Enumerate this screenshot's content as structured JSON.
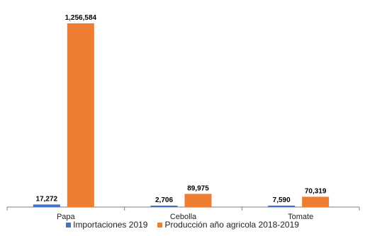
{
  "chart_data": {
    "type": "bar",
    "categories": [
      "Papa",
      "Cebolla",
      "Tomate"
    ],
    "series": [
      {
        "name": "Importaciones 2019",
        "values": [
          17272,
          2706,
          7590
        ],
        "labels": [
          "17,272",
          "2,706",
          "7,590"
        ],
        "color": "#4472C4"
      },
      {
        "name": "Producción año agricola 2018-2019",
        "values": [
          1256584,
          89975,
          70319
        ],
        "labels": [
          "1,256,584",
          "89,975",
          "70,319"
        ],
        "color": "#ED7D31"
      }
    ],
    "title": "",
    "xlabel": "",
    "ylabel": "",
    "ylim": [
      0,
      1256584
    ],
    "grid": false,
    "legend_position": "bottom"
  }
}
